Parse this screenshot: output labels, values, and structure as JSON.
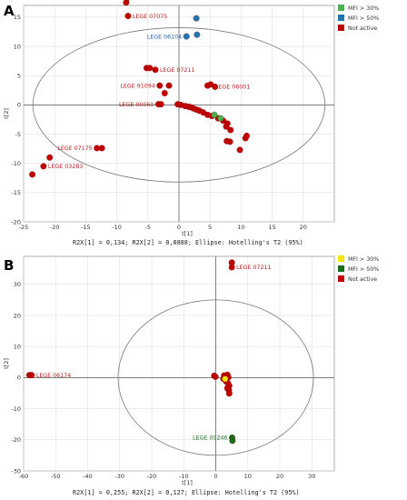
{
  "colors": {
    "mfi30_a": "#4caf50",
    "mfi50_a": "#1f77b4",
    "not_active": "#c00000",
    "mfi30_b": "#f5e600",
    "mfi50_b": "#1a6e1a",
    "label_red": "#b71c1c",
    "label_blue": "#1f5fa8",
    "label_green": "#1a6e1a",
    "grid": "#d8d8d8",
    "frame": "#9a9a9a"
  },
  "chart_data": [
    {
      "type": "scatter",
      "panel_letter": "A",
      "xlabel": "t[1]",
      "ylabel": "t[2]",
      "xlim": [
        -25,
        25
      ],
      "ylim": [
        -20,
        17
      ],
      "xticks": [
        -25,
        -20,
        -15,
        -10,
        -5,
        0,
        5,
        10,
        15,
        20
      ],
      "yticks": [
        -20,
        -15,
        -10,
        -5,
        0,
        5,
        10,
        15
      ],
      "ellipse": {
        "cx": 0,
        "cy": 0,
        "rx": 23.5,
        "ry": 13.2
      },
      "caption": "R2X[1] = 0,134; R2X[2] = 0,0888; Ellipse: Hotelling's T2 (95%)",
      "legend": [
        {
          "label": "MFI > 30%",
          "color_key": "mfi30_a"
        },
        {
          "label": "MFI > 50%",
          "color_key": "mfi50_a"
        },
        {
          "label": "Not active",
          "color_key": "not_active"
        }
      ],
      "series": [
        {
          "name": "Not active",
          "color_key": "not_active",
          "points": [
            [
              -8.5,
              17.5
            ],
            [
              -8.3,
              18.3
            ],
            [
              -8.2,
              15.2
            ],
            [
              -5.2,
              6.3
            ],
            [
              -4.7,
              6.3
            ],
            [
              -3.8,
              6.0
            ],
            [
              -3.1,
              3.3
            ],
            [
              -1.6,
              3.3
            ],
            [
              -2.3,
              2.0
            ],
            [
              -3.3,
              0.1
            ],
            [
              -2.9,
              0.1
            ],
            [
              -0.2,
              0.1
            ],
            [
              0.3,
              0.0
            ],
            [
              1.0,
              -0.2
            ],
            [
              1.5,
              -0.3
            ],
            [
              1.9,
              -0.4
            ],
            [
              2.3,
              -0.6
            ],
            [
              2.8,
              -0.8
            ],
            [
              3.3,
              -1.0
            ],
            [
              3.9,
              -1.3
            ],
            [
              4.6,
              -1.7
            ],
            [
              5.3,
              -1.9
            ],
            [
              6.3,
              -2.3
            ],
            [
              7.1,
              -2.7
            ],
            [
              7.8,
              -3.2
            ],
            [
              8.3,
              -4.3
            ],
            [
              7.6,
              -3.7
            ],
            [
              8.2,
              -6.3
            ],
            [
              7.7,
              -6.2
            ],
            [
              9.8,
              -7.7
            ],
            [
              10.7,
              -5.7
            ],
            [
              10.9,
              -5.3
            ],
            [
              4.6,
              3.3
            ],
            [
              5.1,
              3.5
            ],
            [
              5.8,
              3.1
            ],
            [
              -13.2,
              -7.4
            ],
            [
              -12.4,
              -7.4
            ],
            [
              -20.8,
              -9.0
            ],
            [
              -21.8,
              -10.5
            ],
            [
              -23.6,
              -11.9
            ]
          ]
        },
        {
          "name": "MFI > 50%",
          "color_key": "mfi50_a",
          "points": [
            [
              2.8,
              14.8
            ],
            [
              2.9,
              12.0
            ],
            [
              1.2,
              11.7
            ]
          ]
        },
        {
          "name": "MFI > 30%",
          "color_key": "mfi30_a",
          "points": [
            [
              5.7,
              -1.7
            ],
            [
              6.7,
              -2.3
            ]
          ]
        }
      ],
      "annotations": [
        {
          "text": "LEGE 07075",
          "x": -8.2,
          "y": 15.2,
          "color_key": "label_red",
          "side": "right"
        },
        {
          "text": "LEGE 06104",
          "x": 1.2,
          "y": 11.7,
          "color_key": "label_blue",
          "side": "left"
        },
        {
          "text": "LEGE 07211",
          "x": -3.8,
          "y": 6.0,
          "color_key": "label_red",
          "side": "right"
        },
        {
          "text": "LEGE 91094",
          "x": -3.1,
          "y": 3.3,
          "color_key": "label_red",
          "side": "left"
        },
        {
          "text": "LEGE 06001",
          "x": 5.1,
          "y": 3.1,
          "color_key": "label_red",
          "side": "right"
        },
        {
          "text": "LEGE 00060",
          "x": -3.3,
          "y": 0.1,
          "color_key": "label_red",
          "side": "left"
        },
        {
          "text": "LEGE 07175",
          "x": -13.2,
          "y": -7.4,
          "color_key": "label_red",
          "side": "left"
        },
        {
          "text": "LEGE 03283",
          "x": -21.8,
          "y": -10.5,
          "color_key": "label_red",
          "side": "right"
        }
      ]
    },
    {
      "type": "scatter",
      "panel_letter": "B",
      "xlabel": "t[1]",
      "ylabel": "t[2]",
      "xlim": [
        -60,
        37
      ],
      "ylim": [
        -30,
        39
      ],
      "xticks": [
        -60,
        -50,
        -40,
        -30,
        -20,
        -10,
        0,
        10,
        20,
        30
      ],
      "yticks": [
        -30,
        -20,
        -10,
        0,
        10,
        20,
        30
      ],
      "ellipse": {
        "cx": 0,
        "cy": 0,
        "rx": 30.5,
        "ry": 25.0
      },
      "caption": "R2X[1] = 0,255; R2X[2] = 0,127; Ellipse: Hotelling's T2 (95%)",
      "legend": [
        {
          "label": "MFI > 30%",
          "color_key": "mfi30_b"
        },
        {
          "label": "MFI > 50%",
          "color_key": "mfi50_b"
        },
        {
          "label": "Not active",
          "color_key": "not_active"
        }
      ],
      "series": [
        {
          "name": "Not active",
          "color_key": "not_active",
          "points": [
            [
              5.0,
              37.0
            ],
            [
              5.0,
              35.5
            ],
            [
              -58.2,
              0.8
            ],
            [
              -57.5,
              0.8
            ],
            [
              -0.5,
              0.6
            ],
            [
              -0.1,
              0.3
            ],
            [
              2.6,
              0.7
            ],
            [
              3.6,
              0.9
            ],
            [
              3.9,
              0.1
            ],
            [
              2.4,
              -0.4
            ],
            [
              3.2,
              -1.2
            ],
            [
              3.8,
              -1.8
            ],
            [
              4.2,
              -2.6
            ],
            [
              3.6,
              -3.4
            ],
            [
              4.1,
              -4.1
            ],
            [
              4.2,
              -5.1
            ]
          ]
        },
        {
          "name": "MFI > 30%",
          "color_key": "mfi30_b",
          "points": [
            [
              2.9,
              -0.4
            ]
          ]
        },
        {
          "name": "MFI > 50%",
          "color_key": "mfi50_b",
          "points": [
            [
              5.1,
              -19.3
            ],
            [
              5.2,
              -20.3
            ]
          ]
        }
      ],
      "annotations": [
        {
          "text": "LEGE 07211",
          "x": 5.0,
          "y": 35.5,
          "color_key": "label_red",
          "side": "right"
        },
        {
          "text": "LEGE 06174",
          "x": -57.5,
          "y": 0.8,
          "color_key": "label_red",
          "side": "right"
        },
        {
          "text": "LEGE 00246",
          "x": 5.1,
          "y": -19.3,
          "color_key": "label_green",
          "side": "left"
        }
      ]
    }
  ]
}
